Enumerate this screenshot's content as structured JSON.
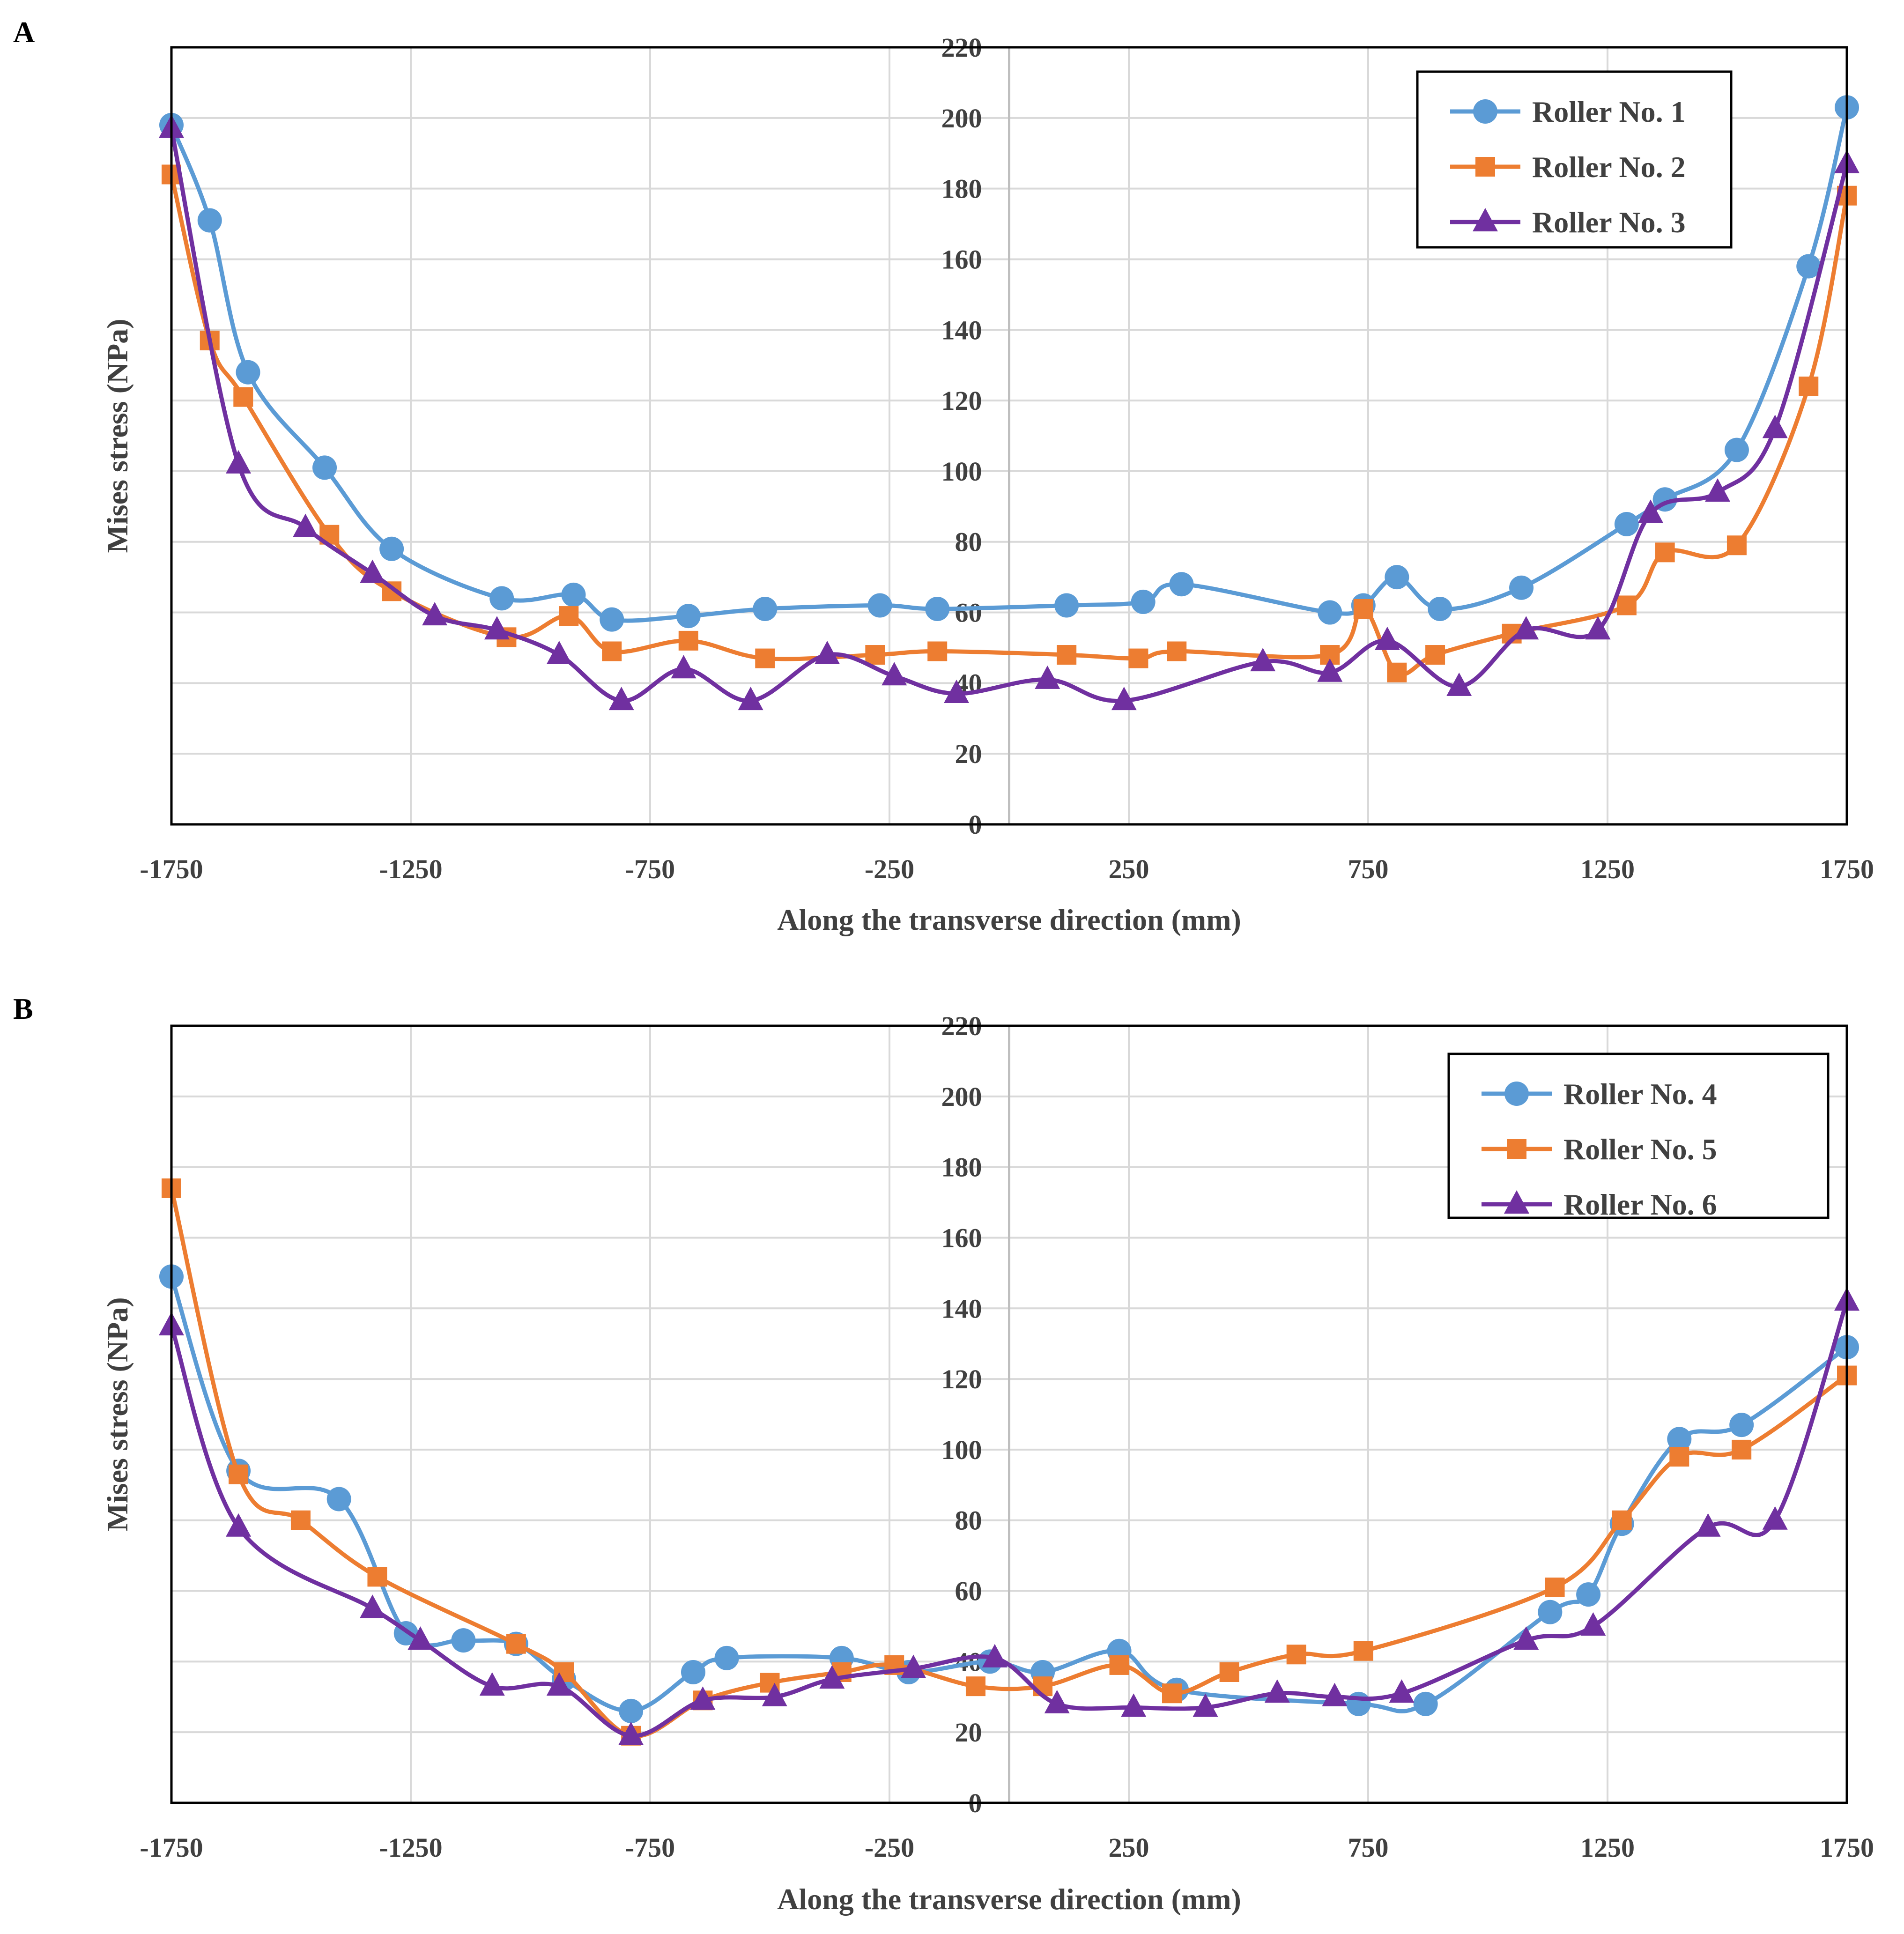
{
  "chart_data": [
    {
      "panel": "A",
      "type": "line",
      "xlabel": "Along the transverse direction (mm)",
      "ylabel": "Mises stress (NPa)",
      "xlim": [
        -1750,
        1750
      ],
      "ylim": [
        0,
        220
      ],
      "xticks": [
        -1750,
        -1250,
        -750,
        -250,
        250,
        750,
        1250,
        1750
      ],
      "xtick_labels": [
        "-1750",
        "-1250",
        "-750",
        "-250",
        "250",
        "750",
        "1250",
        "1750"
      ],
      "yticks": [
        0,
        20,
        40,
        60,
        80,
        100,
        120,
        140,
        160,
        180,
        200,
        220
      ],
      "ytick_labels": [
        "0",
        "20",
        "40",
        "60",
        "80",
        "100",
        "120",
        "140",
        "160",
        "180",
        "200",
        "220"
      ],
      "legend_position": "top-right",
      "grid": true,
      "series": [
        {
          "name": "Roller No. 1",
          "color": "#5b9bd5",
          "marker": "circle",
          "x": [
            -1750,
            -1670,
            -1590,
            -1430,
            -1290,
            -1060,
            -910,
            -830,
            -670,
            -510,
            -270,
            -150,
            120,
            280,
            360,
            670,
            740,
            810,
            900,
            1070,
            1290,
            1370,
            1520,
            1670,
            1750
          ],
          "y": [
            198,
            171,
            128,
            101,
            78,
            64,
            65,
            58,
            59,
            61,
            62,
            61,
            62,
            63,
            68,
            60,
            62,
            70,
            61,
            67,
            85,
            92,
            106,
            158,
            203
          ]
        },
        {
          "name": "Roller No. 2",
          "color": "#ed7d31",
          "marker": "square",
          "x": [
            -1750,
            -1670,
            -1600,
            -1420,
            -1290,
            -1050,
            -920,
            -830,
            -670,
            -510,
            -280,
            -150,
            120,
            270,
            350,
            670,
            740,
            810,
            890,
            1050,
            1290,
            1370,
            1520,
            1670,
            1750
          ],
          "y": [
            184,
            137,
            121,
            82,
            66,
            53,
            59,
            49,
            52,
            47,
            48,
            49,
            48,
            47,
            49,
            48,
            61,
            43,
            48,
            54,
            62,
            77,
            79,
            124,
            178
          ]
        },
        {
          "name": "Roller No. 3",
          "color": "#7030a0",
          "marker": "triangle",
          "x": [
            -1750,
            -1610,
            -1470,
            -1330,
            -1200,
            -1070,
            -940,
            -810,
            -680,
            -540,
            -380,
            -240,
            -110,
            80,
            240,
            530,
            670,
            790,
            940,
            1080,
            1230,
            1340,
            1480,
            1600,
            1750
          ],
          "y": [
            197,
            102,
            84,
            71,
            59,
            55,
            48,
            35,
            44,
            35,
            48,
            42,
            37,
            41,
            35,
            46,
            43,
            52,
            39,
            55,
            55,
            88,
            94,
            112,
            187
          ]
        }
      ]
    },
    {
      "panel": "B",
      "type": "line",
      "xlabel": "Along the transverse direction (mm)",
      "ylabel": "Mises stress (NPa)",
      "xlim": [
        -1750,
        1750
      ],
      "ylim": [
        0,
        220
      ],
      "xticks": [
        -1750,
        -1250,
        -750,
        -250,
        250,
        750,
        1250,
        1750
      ],
      "xtick_labels": [
        "-1750",
        "-1250",
        "-750",
        "-250",
        "250",
        "750",
        "1250",
        "1750"
      ],
      "yticks": [
        0,
        20,
        40,
        60,
        80,
        100,
        120,
        140,
        160,
        180,
        200,
        220
      ],
      "ytick_labels": [
        "0",
        "20",
        "40",
        "60",
        "80",
        "100",
        "120",
        "140",
        "160",
        "180",
        "200",
        "220"
      ],
      "legend_position": "top-right",
      "grid": true,
      "series": [
        {
          "name": "Roller No. 4",
          "color": "#5b9bd5",
          "marker": "circle",
          "x": [
            -1750,
            -1610,
            -1400,
            -1260,
            -1140,
            -1030,
            -930,
            -790,
            -660,
            -590,
            -350,
            -210,
            -40,
            70,
            230,
            350,
            730,
            870,
            1130,
            1210,
            1280,
            1400,
            1530,
            1750
          ],
          "y": [
            149,
            94,
            86,
            48,
            46,
            45,
            35,
            26,
            37,
            41,
            41,
            37,
            40,
            37,
            43,
            32,
            28,
            28,
            54,
            59,
            79,
            103,
            107,
            129
          ]
        },
        {
          "name": "Roller No. 5",
          "color": "#ed7d31",
          "marker": "square",
          "x": [
            -1750,
            -1610,
            -1480,
            -1320,
            -1030,
            -930,
            -790,
            -640,
            -500,
            -350,
            -240,
            -70,
            70,
            230,
            340,
            460,
            600,
            740,
            1140,
            1280,
            1400,
            1530,
            1750
          ],
          "y": [
            174,
            93,
            80,
            64,
            45,
            37,
            19,
            29,
            34,
            37,
            39,
            33,
            33,
            39,
            31,
            37,
            42,
            43,
            61,
            80,
            98,
            100,
            121
          ]
        },
        {
          "name": "Roller No. 6",
          "color": "#7030a0",
          "marker": "triangle",
          "x": [
            -1750,
            -1610,
            -1330,
            -1230,
            -1080,
            -940,
            -790,
            -640,
            -490,
            -370,
            -200,
            -30,
            100,
            260,
            410,
            560,
            680,
            820,
            1080,
            1220,
            1460,
            1600,
            1750
          ],
          "y": [
            135,
            78,
            55,
            46,
            33,
            33,
            19,
            29,
            30,
            35,
            38,
            41,
            28,
            27,
            27,
            31,
            30,
            31,
            46,
            50,
            78,
            80,
            142
          ]
        }
      ]
    }
  ]
}
